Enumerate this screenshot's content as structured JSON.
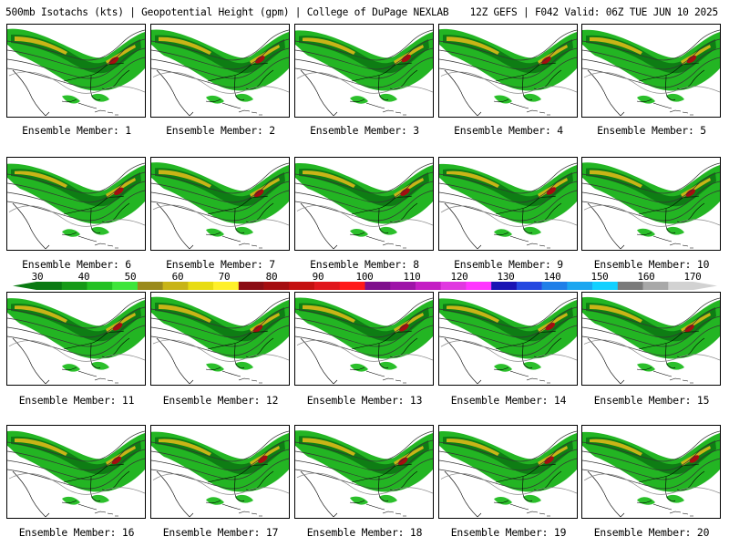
{
  "header": {
    "left": "500mb Isotachs (kts) | Geopotential Height (gpm) | College of DuPage NEXLAB",
    "right": "12Z GEFS | F042 Valid: 06Z TUE JUN 10 2025"
  },
  "members": [
    {
      "label": "Ensemble Member: 1"
    },
    {
      "label": "Ensemble Member: 2"
    },
    {
      "label": "Ensemble Member: 3"
    },
    {
      "label": "Ensemble Member: 4"
    },
    {
      "label": "Ensemble Member: 5"
    },
    {
      "label": "Ensemble Member: 6"
    },
    {
      "label": "Ensemble Member: 7"
    },
    {
      "label": "Ensemble Member: 8"
    },
    {
      "label": "Ensemble Member: 9"
    },
    {
      "label": "Ensemble Member: 10"
    },
    {
      "label": "Ensemble Member: 11"
    },
    {
      "label": "Ensemble Member: 12"
    },
    {
      "label": "Ensemble Member: 13"
    },
    {
      "label": "Ensemble Member: 14"
    },
    {
      "label": "Ensemble Member: 15"
    },
    {
      "label": "Ensemble Member: 16"
    },
    {
      "label": "Ensemble Member: 17"
    },
    {
      "label": "Ensemble Member: 18"
    },
    {
      "label": "Ensemble Member: 19"
    },
    {
      "label": "Ensemble Member: 20"
    }
  ],
  "colorbar": {
    "labels": [
      "30",
      "40",
      "50",
      "60",
      "70",
      "80",
      "90",
      "100",
      "110",
      "120",
      "130",
      "140",
      "150",
      "160",
      "170"
    ],
    "colors": [
      "#0a7a12",
      "#159a17",
      "#23c123",
      "#3ee53a",
      "#9a8a1c",
      "#c8b417",
      "#e8dc12",
      "#fff02a",
      "#8b0d14",
      "#a50d10",
      "#c41010",
      "#e0161c",
      "#ff1a1a",
      "#7f0f8c",
      "#9e14a8",
      "#c41ec4",
      "#e038e0",
      "#ff36ff",
      "#1a14b4",
      "#2448e0",
      "#1f7fe8",
      "#1ca6f0",
      "#12d0ff",
      "#7a7a7a",
      "#a8a8a8",
      "#d2d2d2"
    ]
  }
}
